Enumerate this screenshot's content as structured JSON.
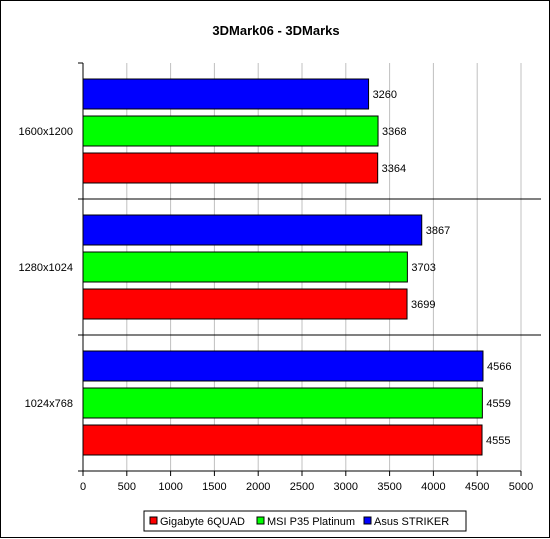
{
  "chart_data": {
    "type": "bar",
    "orientation": "horizontal",
    "title": "3DMark06 - 3DMarks",
    "xlabel": "",
    "ylabel": "",
    "categories": [
      "1600x1200",
      "1280x1024",
      "1024x768"
    ],
    "series": [
      {
        "name": "Gigabyte 6QUAD",
        "color": "#ff0000",
        "values": [
          3364,
          3699,
          4555
        ]
      },
      {
        "name": "MSI P35 Platinum",
        "color": "#00ff00",
        "values": [
          3368,
          3703,
          4559
        ]
      },
      {
        "name": "Asus STRIKER",
        "color": "#0000ff",
        "values": [
          3260,
          3867,
          4566
        ]
      }
    ],
    "xlim": [
      0,
      5000
    ],
    "xticks": [
      0,
      500,
      1000,
      1500,
      2000,
      2500,
      3000,
      3500,
      4000,
      4500,
      5000
    ],
    "grid": "vertical",
    "legend_position": "bottom"
  }
}
